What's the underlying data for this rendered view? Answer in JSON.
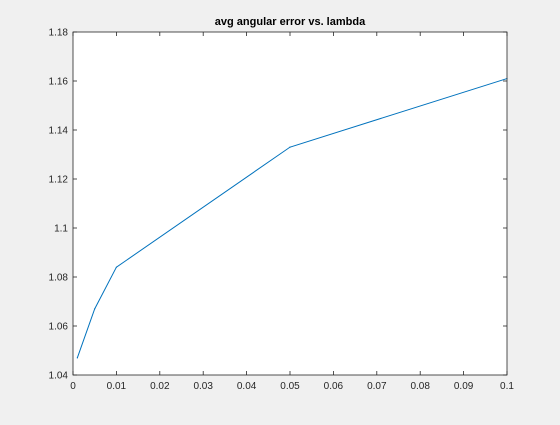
{
  "chart_data": {
    "type": "line",
    "title": "avg angular error vs. lambda",
    "xlabel": "",
    "ylabel": "",
    "xlim": [
      0,
      0.1
    ],
    "ylim": [
      1.04,
      1.18
    ],
    "grid": false,
    "x_ticks": [
      0,
      0.01,
      0.02,
      0.03,
      0.04,
      0.05,
      0.06,
      0.07,
      0.08,
      0.09,
      0.1
    ],
    "x_tick_labels": [
      "0",
      "0.01",
      "0.02",
      "0.03",
      "0.04",
      "0.05",
      "0.06",
      "0.07",
      "0.08",
      "0.09",
      "0.1"
    ],
    "y_ticks": [
      1.04,
      1.06,
      1.08,
      1.1,
      1.12,
      1.14,
      1.16,
      1.18
    ],
    "y_tick_labels": [
      "1.04",
      "1.06",
      "1.08",
      "1.1",
      "1.12",
      "1.14",
      "1.16",
      "1.18"
    ],
    "series": [
      {
        "color": "#0072bd",
        "x": [
          0.001,
          0.005,
          0.01,
          0.05,
          0.1
        ],
        "y": [
          1.047,
          1.067,
          1.084,
          1.133,
          1.161
        ]
      }
    ]
  }
}
